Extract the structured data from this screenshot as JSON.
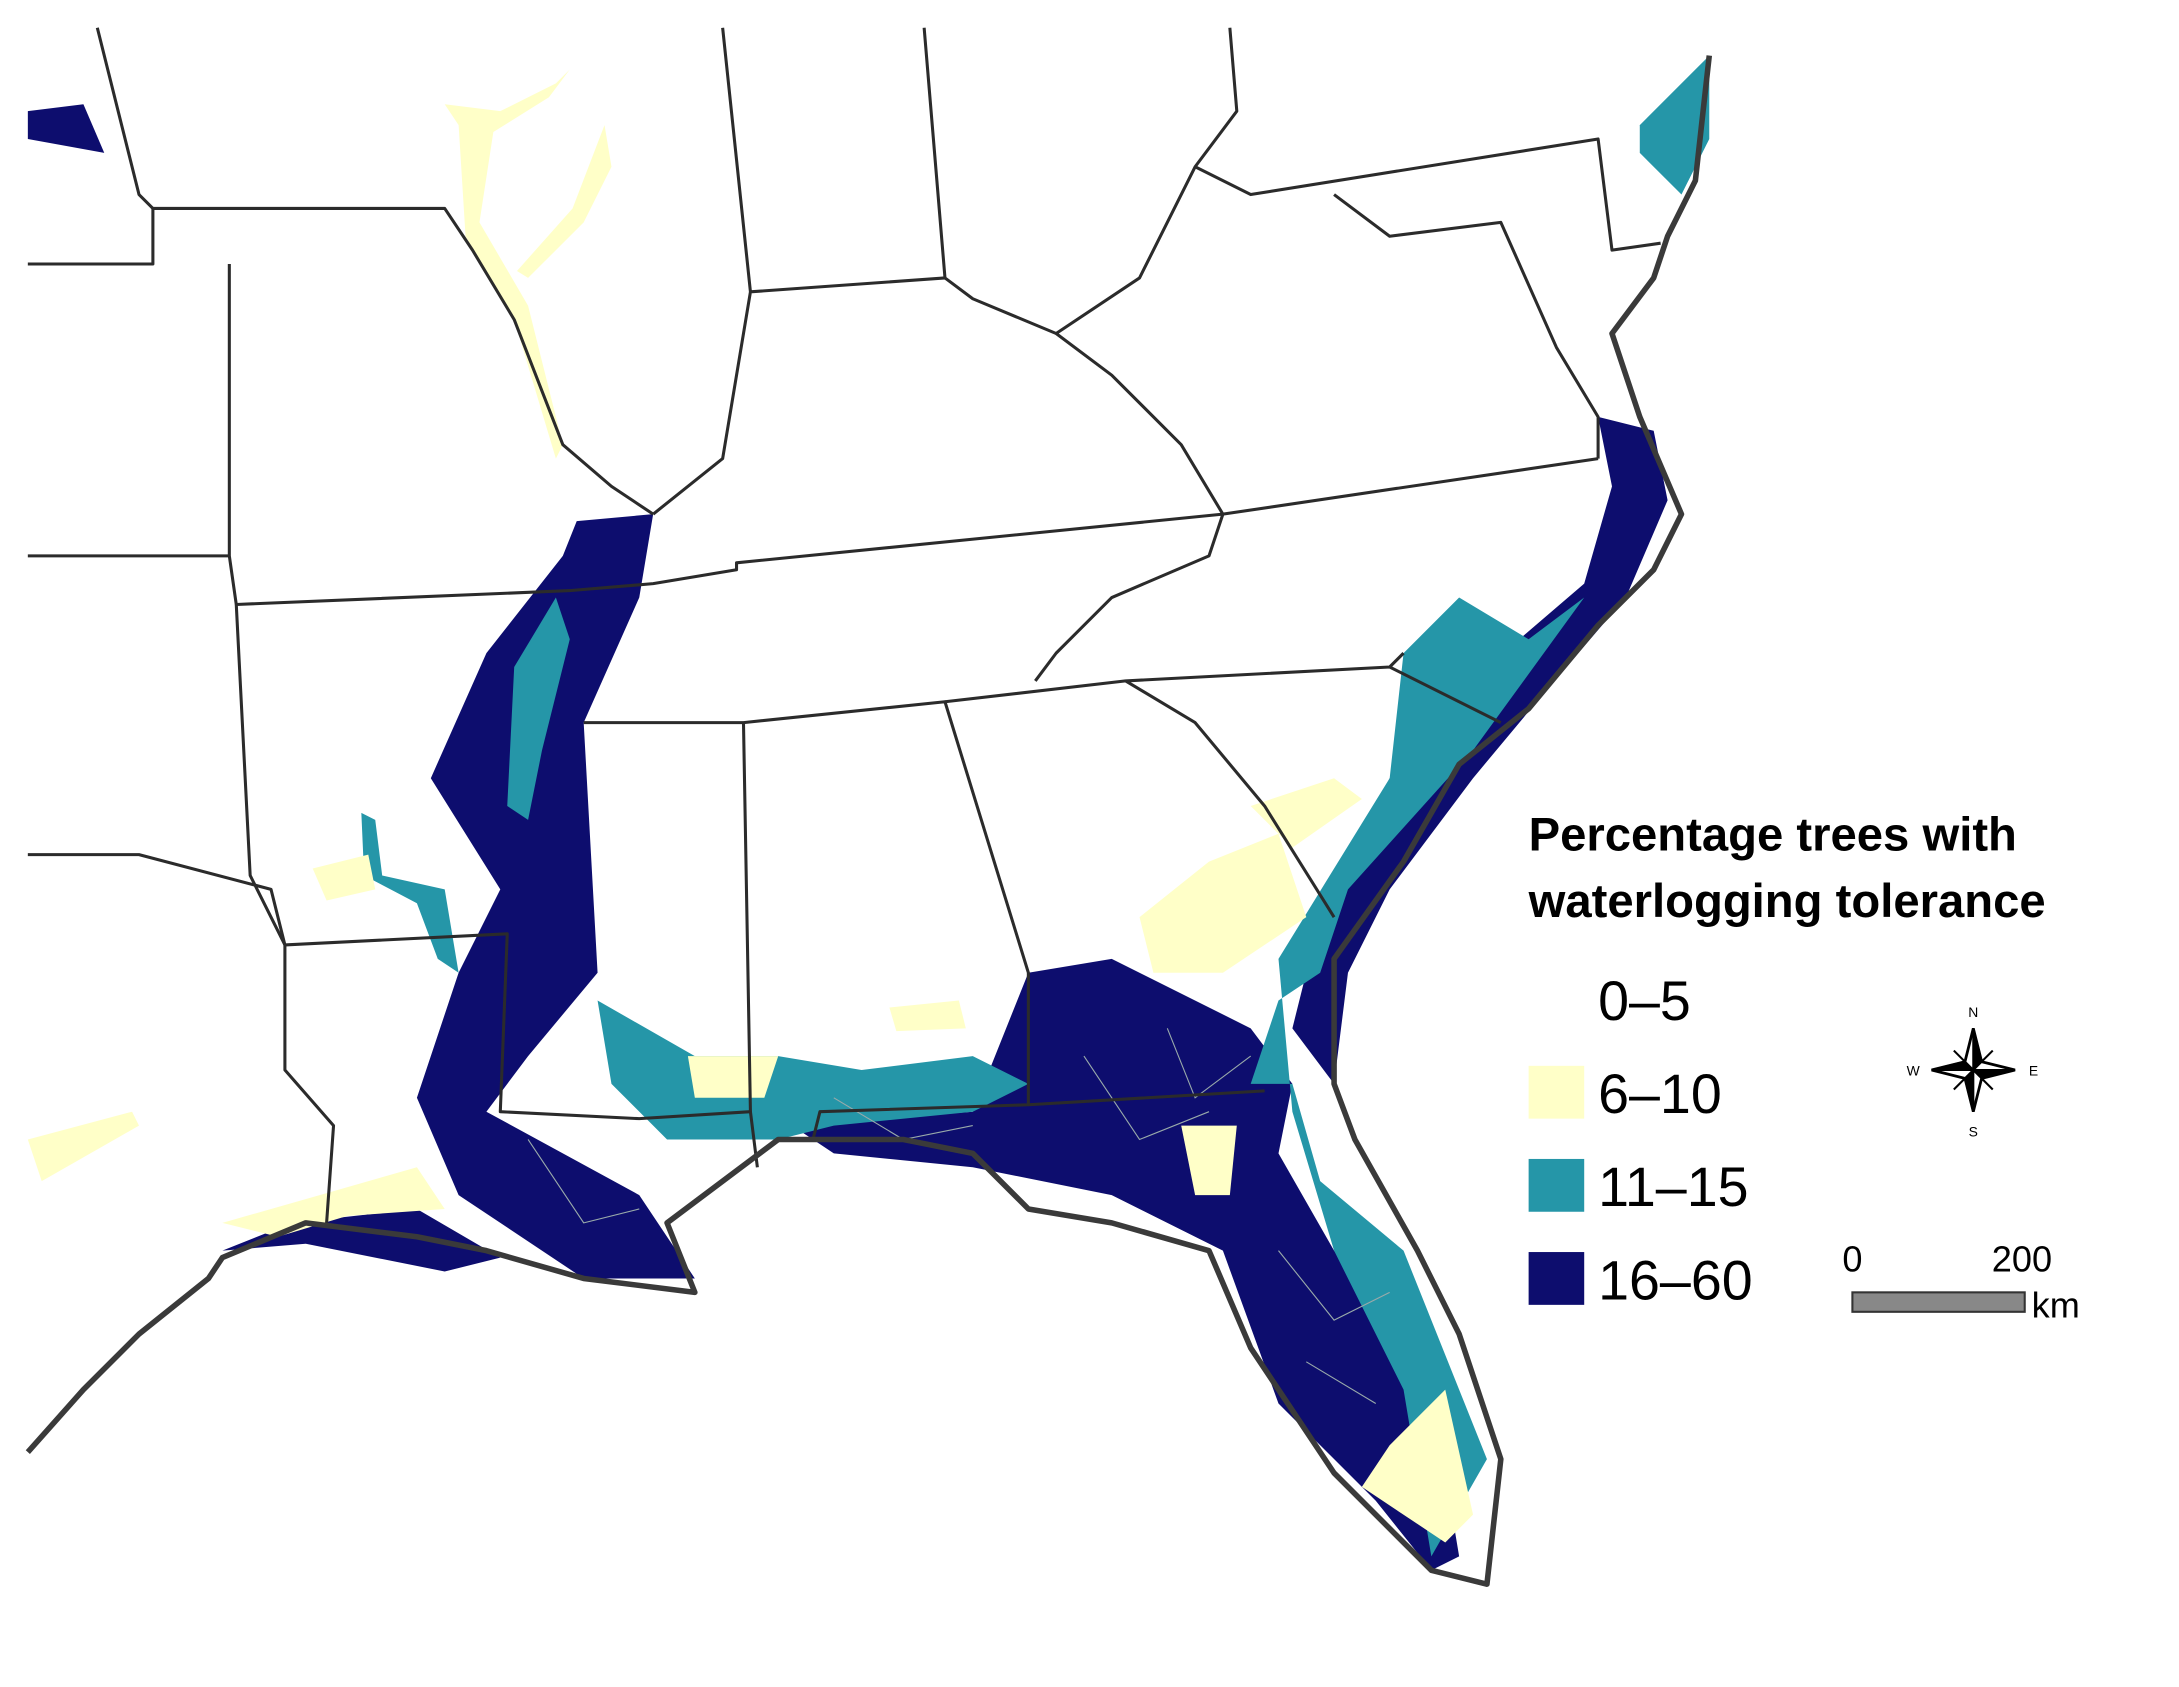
{
  "legend": {
    "title": [
      "Percentage trees with",
      "waterlogging tolerance"
    ],
    "items": [
      {
        "label": "0–5",
        "color": "#ffffff"
      },
      {
        "label": "6–10",
        "color": "#ffffc8"
      },
      {
        "label": "11–15",
        "color": "#2596a8"
      },
      {
        "label": "16–60",
        "color": "#0d0d6e"
      }
    ]
  },
  "compass": {
    "n": "N",
    "s": "S",
    "e": "E",
    "w": "W"
  },
  "scale_bar": {
    "start": "0",
    "end": "200",
    "unit": "km"
  }
}
